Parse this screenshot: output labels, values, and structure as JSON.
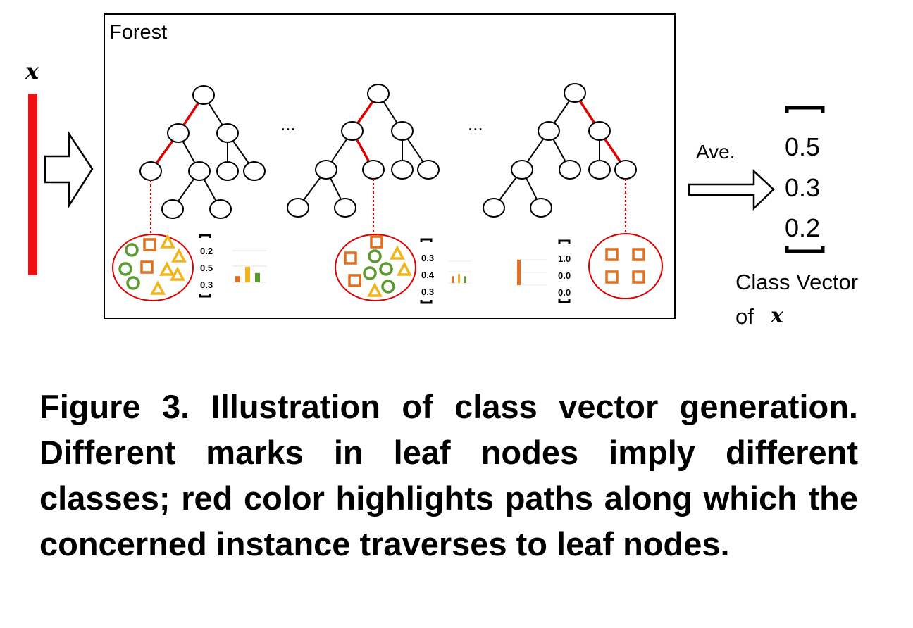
{
  "input_label": "x",
  "forest_label": "Forest",
  "ellipsis": "...",
  "average_label": "Ave.",
  "trees": [
    {
      "leaf_distribution": [
        "0.2",
        "0.5",
        "0.3"
      ]
    },
    {
      "leaf_distribution": [
        "0.3",
        "0.4",
        "0.3"
      ]
    },
    {
      "leaf_distribution": [
        "1.0",
        "0.0",
        "0.0"
      ]
    }
  ],
  "class_vector": [
    "0.5",
    "0.3",
    "0.2"
  ],
  "class_vector_caption_line1": "Class Vector",
  "class_vector_caption_line2_prefix": "of",
  "class_vector_caption_var": "x",
  "colors": {
    "path_red": "#e00000",
    "input_bar": "#ee1111",
    "class_green": "#5a9b2f",
    "class_orange": "#e06f1f",
    "class_yellow": "#f0b51a"
  },
  "caption": "Figure 3. Illustration of class vector generation. Different marks in leaf nodes imply different classes; red color highlights paths along which the concerned instance traverses to leaf nodes."
}
